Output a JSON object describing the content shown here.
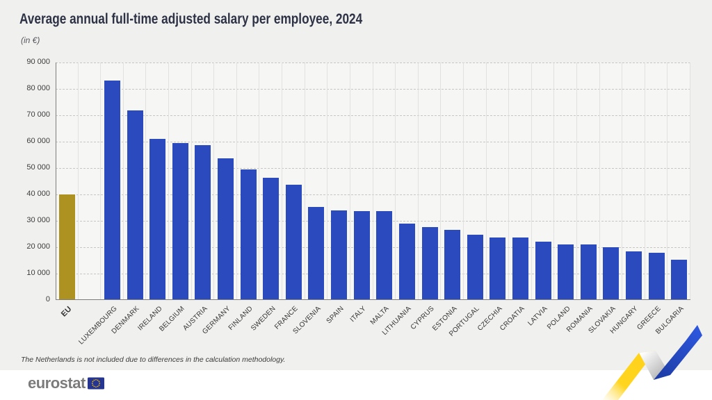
{
  "title": "Average annual full-time adjusted salary per employee, 2024",
  "subtitle": "(in €)",
  "footnote": "The Netherlands is not included due to differences in the calculation methodology.",
  "logo": {
    "text": "eurostat",
    "flag": "eu-flag"
  },
  "colors": {
    "background": "#f0f0ef",
    "plot_background": "#f6f6f5",
    "bar_blue": "#2b4abd",
    "bar_gold_eu": "#ad9222",
    "title_text": "#2d3245",
    "logo_gray": "#7b7b7b",
    "flag_blue": "#26358f",
    "star_yellow": "#ffcc00",
    "ribbon_yellow": "#ffd21c",
    "ribbon_blue": "#2450d2"
  },
  "chart_data": {
    "type": "bar",
    "title": "Average annual full-time adjusted salary per employee, 2024",
    "unit": "€",
    "xlabel": "",
    "ylabel": "(in €)",
    "ylim": [
      0,
      90000
    ],
    "y_tick_interval": 10000,
    "y_tick_labels": [
      "0",
      "10 000",
      "20 000",
      "30 000",
      "40 000",
      "50 000",
      "60 000",
      "70 000",
      "80 000",
      "90 000"
    ],
    "grid": "horizontal dashed gridlines + vertical category separators",
    "legend": "none",
    "highlight_category": "EU",
    "spacer_after_first": true,
    "categories": [
      "EU",
      "LUXEMBOURG",
      "DENMARK",
      "IRELAND",
      "BELGIUM",
      "AUSTRIA",
      "GERMANY",
      "FINLAND",
      "SWEDEN",
      "FRANCE",
      "SLOVENIA",
      "SPAIN",
      "ITALY",
      "MALTA",
      "LITHUANIA",
      "CYPRUS",
      "ESTONIA",
      "PORTUGAL",
      "CZECHIA",
      "CROATIA",
      "LATVIA",
      "POLAND",
      "ROMANIA",
      "SLOVAKIA",
      "HUNGARY",
      "GREECE",
      "BULGARIA"
    ],
    "values": [
      40000,
      83200,
      71800,
      61100,
      59600,
      58800,
      53800,
      49400,
      46400,
      43700,
      35300,
      33900,
      33700,
      33600,
      29000,
      27600,
      26600,
      24700,
      23800,
      23600,
      22000,
      21100,
      21000,
      20100,
      18300,
      17800,
      15200
    ]
  }
}
